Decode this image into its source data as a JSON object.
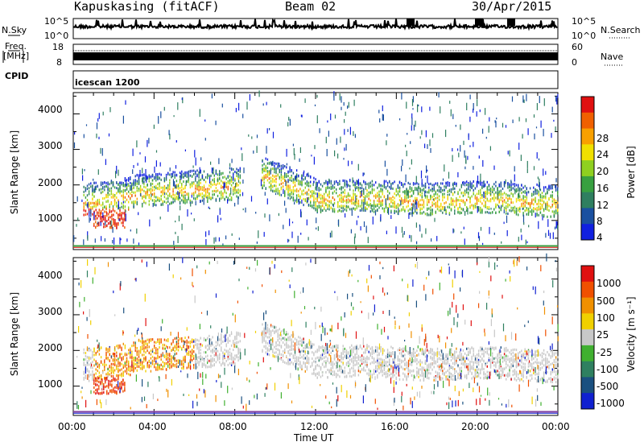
{
  "header": {
    "station": "Kapuskasing (fitACF)",
    "beam": "Beam 02",
    "date": "30/Apr/2015"
  },
  "noise_panel": {
    "left_label": "N.Sky",
    "right_label": "N.Search",
    "left_ticks": [
      "10^5",
      "10^0"
    ],
    "right_ticks": [
      "10^5",
      "10^0"
    ]
  },
  "freq_panel": {
    "left_label_1": "Freq.",
    "left_label_2": "[MHz]",
    "right_label": "Nave",
    "left_ticks": [
      "18",
      "8"
    ],
    "right_ticks": [
      "60",
      "0"
    ]
  },
  "cpid": {
    "label": "CPID",
    "value": "icescan 1200"
  },
  "colors": {
    "power_scale": [
      "#1020e0",
      "#1a50a0",
      "#2f7f60",
      "#38a040",
      "#8fd020",
      "#f0e000",
      "#f8a000",
      "#f06000",
      "#e01010"
    ],
    "velocity_scale": [
      "#1020d0",
      "#1a5080",
      "#2f8060",
      "#40b030",
      "#c8c8c8",
      "#f0d000",
      "#f09000",
      "#f05000",
      "#e01010"
    ]
  },
  "chart_data": [
    {
      "type": "heatmap",
      "name": "power",
      "xlabel": "",
      "ylabel": "Slant Range [km]",
      "xlim": [
        "00:00",
        "24:00"
      ],
      "ylim": [
        180,
        4600
      ],
      "y_ticks": [
        "4000",
        "3000",
        "2000",
        "1000"
      ],
      "colorbar": {
        "label": "Power [dB]",
        "ticks": [
          "28",
          "24",
          "20",
          "16",
          "12",
          "8",
          "4"
        ],
        "range": [
          0,
          30
        ]
      }
    },
    {
      "type": "heatmap",
      "name": "velocity",
      "xlabel": "Time UT",
      "ylabel": "Slant Range [km]",
      "xlim": [
        "00:00",
        "24:00"
      ],
      "ylim": [
        180,
        4600
      ],
      "x_ticks": [
        "00:00",
        "04:00",
        "08:00",
        "12:00",
        "16:00",
        "20:00",
        "00:00"
      ],
      "y_ticks": [
        "4000",
        "3000",
        "2000",
        "1000"
      ],
      "colorbar": {
        "label": "Velocity [m s⁻¹]",
        "ticks": [
          "1000",
          "500",
          "100",
          "25",
          "-25",
          "-100",
          "-500",
          "-1000"
        ]
      }
    }
  ]
}
